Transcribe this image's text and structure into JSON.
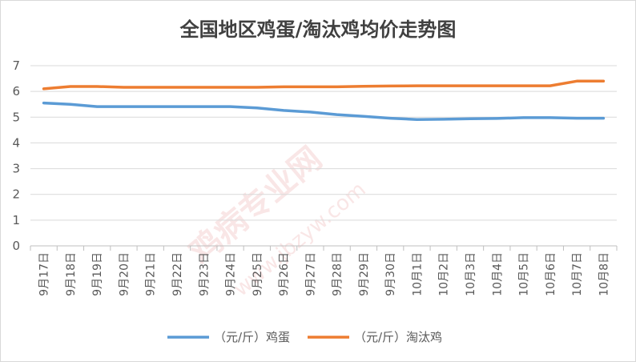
{
  "chart_data": {
    "type": "line",
    "title": "全国地区鸡蛋/淘汰鸡均价走势图",
    "categories": [
      "9月17日",
      "9月18日",
      "9月19日",
      "9月20日",
      "9月21日",
      "9月22日",
      "9月23日",
      "9月24日",
      "9月25日",
      "9月26日",
      "9月27日",
      "9月28日",
      "9月29日",
      "9月30日",
      "10月1日",
      "10月2日",
      "10月3日",
      "10月4日",
      "10月5日",
      "10月6日",
      "10月7日",
      "10月8日"
    ],
    "ylim": [
      0,
      7
    ],
    "yticks": [
      "0",
      "1",
      "2",
      "3",
      "4",
      "5",
      "6",
      "7"
    ],
    "grid": true,
    "legend_position": "bottom",
    "series": [
      {
        "name": "（元/斤）鸡蛋",
        "color": "#5b9bd5",
        "values": [
          5.55,
          5.5,
          5.41,
          5.41,
          5.41,
          5.41,
          5.41,
          5.41,
          5.36,
          5.26,
          5.2,
          5.1,
          5.03,
          4.96,
          4.91,
          4.92,
          4.94,
          4.95,
          4.98,
          4.98,
          4.96,
          4.96
        ]
      },
      {
        "name": "（元/斤）淘汰鸡",
        "color": "#ed7d31",
        "values": [
          6.1,
          6.19,
          6.19,
          6.16,
          6.16,
          6.16,
          6.16,
          6.16,
          6.16,
          6.18,
          6.18,
          6.18,
          6.2,
          6.21,
          6.22,
          6.22,
          6.22,
          6.22,
          6.22,
          6.22,
          6.4,
          6.4
        ]
      }
    ]
  },
  "watermark": {
    "main": "鸡病专业网",
    "url": "www.jbzyw.com"
  }
}
